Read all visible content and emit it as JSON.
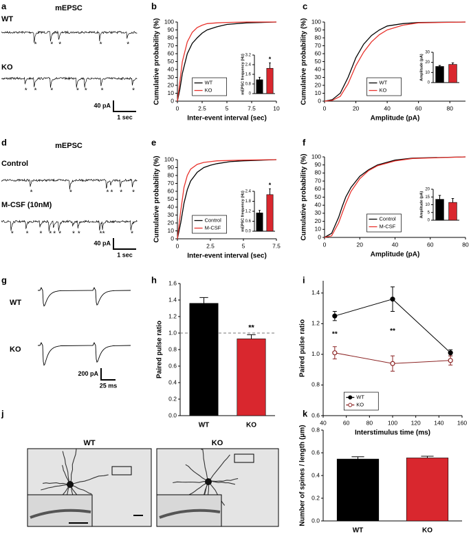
{
  "panel_labels": [
    "a",
    "b",
    "c",
    "d",
    "e",
    "f",
    "g",
    "h",
    "i",
    "j",
    "k"
  ],
  "traces": {
    "a": {
      "title": "mEPSC",
      "rows": [
        "WT",
        "KO"
      ],
      "marker": "*",
      "scale_y": "40 pA",
      "scale_x": "1 sec"
    },
    "d": {
      "title": "mEPSC",
      "rows": [
        "Control",
        "M-CSF (10nM)"
      ],
      "marker": "*",
      "scale_y": "40 pA",
      "scale_x": "1 sec"
    },
    "g": {
      "rows": [
        "WT",
        "KO"
      ],
      "scale_y": "200 pA",
      "scale_x": "25 ms"
    }
  },
  "images": {
    "titles": [
      "WT",
      "KO"
    ]
  },
  "chart_data": [
    {
      "type": "line",
      "x": [
        0,
        0.25,
        0.5,
        1,
        1.5,
        2,
        2.5,
        3,
        4,
        5,
        7,
        10
      ],
      "series": [
        {
          "name": "WT",
          "color": "#000000",
          "values": [
            0,
            15,
            35,
            60,
            73,
            80,
            86,
            90,
            94,
            97,
            99,
            100
          ]
        },
        {
          "name": "KO",
          "color": "#e8322c",
          "values": [
            0,
            25,
            50,
            75,
            87,
            93,
            96,
            98,
            99,
            99.5,
            100,
            100
          ]
        }
      ],
      "xlim": [
        0,
        10
      ],
      "xticks": [
        0,
        2.5,
        5,
        7.5,
        10
      ],
      "ylim": [
        0,
        100
      ],
      "yticks": [
        0,
        10,
        20,
        30,
        40,
        50,
        60,
        70,
        80,
        90,
        100
      ],
      "x_label": "Inter-event interval (sec)",
      "y_label": "Cumulative probability (%)",
      "legend": "lower left"
    },
    {
      "type": "bar",
      "categories": [
        null,
        null
      ],
      "values": [
        1.15,
        2.1
      ],
      "errors": [
        0.2,
        0.45
      ],
      "colors": [
        "#000000",
        "#d9272e"
      ],
      "ylim": [
        0,
        3.2
      ],
      "yticks": [
        0,
        0.8,
        1.6,
        2.4,
        3.2
      ],
      "y_label": "mEPSC frequency (Hz)",
      "annotation": "*"
    },
    {
      "type": "line",
      "x": [
        0,
        5,
        10,
        15,
        20,
        25,
        30,
        35,
        40,
        50,
        60,
        90
      ],
      "series": [
        {
          "name": "WT",
          "color": "#000000",
          "values": [
            0,
            2,
            10,
            30,
            55,
            72,
            83,
            90,
            95,
            98,
            99.5,
            100
          ]
        },
        {
          "name": "KO",
          "color": "#e8322c",
          "values": [
            0,
            1,
            6,
            22,
            45,
            62,
            75,
            84,
            90,
            96,
            99,
            100
          ]
        }
      ],
      "xlim": [
        0,
        90
      ],
      "xticks": [
        0,
        20,
        40,
        60,
        80
      ],
      "ylim": [
        0,
        100
      ],
      "yticks": [
        0,
        10,
        20,
        30,
        40,
        50,
        60,
        70,
        80,
        90,
        100
      ],
      "x_label": "Amplitude (pA)",
      "y_label": "Cumulative probability (%)",
      "legend": "lower center"
    },
    {
      "type": "bar",
      "categories": [
        null,
        null
      ],
      "values": [
        16,
        18
      ],
      "errors": [
        1,
        1.5
      ],
      "colors": [
        "#000000",
        "#d9272e"
      ],
      "ylim": [
        0,
        30
      ],
      "yticks": [
        0,
        10,
        20,
        30
      ],
      "y_label": "Amplitude (pA)"
    },
    {
      "type": "line",
      "x": [
        0,
        0.25,
        0.5,
        0.75,
        1,
        1.5,
        2,
        2.5,
        3,
        4,
        5,
        7.5
      ],
      "series": [
        {
          "name": "Control",
          "color": "#000000",
          "values": [
            0,
            20,
            45,
            62,
            73,
            84,
            90,
            93,
            95,
            97.5,
            98.5,
            100
          ]
        },
        {
          "name": "M-CSF",
          "color": "#e8322c",
          "values": [
            0,
            35,
            65,
            80,
            88,
            94,
            96.5,
            97.5,
            98.5,
            99,
            99.5,
            100
          ]
        }
      ],
      "xlim": [
        0,
        7.5
      ],
      "xticks": [
        0,
        2.5,
        5,
        7.5
      ],
      "ylim": [
        0,
        100
      ],
      "yticks": [
        0,
        10,
        20,
        30,
        40,
        50,
        60,
        70,
        80,
        90,
        100
      ],
      "x_label": "Inter-event interval (sec)",
      "y_label": "Cumulative probability (%)",
      "legend": "lower left"
    },
    {
      "type": "bar",
      "categories": [
        null,
        null
      ],
      "values": [
        1.1,
        2.2
      ],
      "errors": [
        0.15,
        0.35
      ],
      "colors": [
        "#000000",
        "#d9272e"
      ],
      "ylim": [
        0,
        2.4
      ],
      "yticks": [
        {
          "value": 0,
          "label": "0.0"
        },
        0.6,
        1.2,
        1.8,
        2.4
      ],
      "y_label": "mEPSC frequency (Hz)",
      "annotation": "*"
    },
    {
      "type": "line",
      "x": [
        0,
        4,
        8,
        10,
        12,
        15,
        20,
        25,
        30,
        40,
        50,
        80
      ],
      "series": [
        {
          "name": "Control",
          "color": "#000000",
          "values": [
            0,
            5,
            25,
            38,
            50,
            62,
            76,
            84,
            90,
            96,
            98.5,
            100
          ]
        },
        {
          "name": "M-CSF",
          "color": "#e8322c",
          "values": [
            0,
            2,
            18,
            30,
            42,
            57,
            73,
            83,
            89,
            95,
            98,
            100
          ]
        }
      ],
      "xlim": [
        0,
        80
      ],
      "xticks": [
        0,
        20,
        40,
        60,
        80
      ],
      "ylim": [
        0,
        100
      ],
      "yticks": [
        0,
        10,
        20,
        30,
        40,
        50,
        60,
        70,
        80,
        90,
        100
      ],
      "x_label": "Amplitude (pA)",
      "y_label": "Cumulative probability (%)",
      "legend": "lower center"
    },
    {
      "type": "bar",
      "categories": [
        null,
        null
      ],
      "values": [
        13.5,
        11.5
      ],
      "errors": [
        2.5,
        2.5
      ],
      "colors": [
        "#000000",
        "#d9272e"
      ],
      "ylim": [
        0,
        20
      ],
      "yticks": [
        0,
        5,
        10,
        15,
        20
      ],
      "y_label": "Amplitude (pA)"
    },
    {
      "type": "bar",
      "categories": [
        "WT",
        "KO"
      ],
      "values": [
        1.36,
        0.93
      ],
      "errors": [
        0.07,
        0.05
      ],
      "colors": [
        "#000000",
        "#d9272e"
      ],
      "ylim": [
        0,
        1.6
      ],
      "yticks": [
        {
          "value": 0,
          "label": "0.0"
        },
        0.2,
        0.4,
        0.6,
        0.8,
        {
          "value": 1,
          "label": "1.0"
        },
        1.2,
        1.4,
        1.6
      ],
      "y_label": "Paired pulse ratio",
      "reference_line": 1,
      "annotation": "**"
    },
    {
      "type": "line",
      "x": [
        50,
        100,
        150
      ],
      "series": [
        {
          "name": "WT",
          "color": "#000000",
          "marker": "filled",
          "values": [
            1.25,
            1.36,
            1.01
          ],
          "errors": [
            0.03,
            0.08,
            0.02
          ]
        },
        {
          "name": "KO",
          "color": "#8b2323",
          "marker": "open",
          "values": [
            1.01,
            0.94,
            0.96
          ],
          "errors": [
            0.04,
            0.05,
            0.03
          ]
        }
      ],
      "xlim": [
        40,
        160
      ],
      "xticks": [
        40,
        60,
        80,
        100,
        120,
        140,
        160
      ],
      "ylim": [
        0.6,
        1.48
      ],
      "yticks": [
        0.6,
        0.8,
        {
          "value": 1,
          "label": "1.0"
        },
        1.2,
        1.4
      ],
      "x_label": "Interstimulus time (ms)",
      "y_label": "Paired pulse ratio",
      "legend": "lower left",
      "annotations": [
        "**",
        "**"
      ]
    },
    {
      "type": "bar",
      "categories": [
        "WT",
        "KO"
      ],
      "values": [
        0.545,
        0.555
      ],
      "errors": [
        0.02,
        0.015
      ],
      "colors": [
        "#000000",
        "#d9272e"
      ],
      "ylim": [
        0,
        0.8
      ],
      "yticks": [
        {
          "value": 0,
          "label": "0.0"
        },
        0.2,
        0.4,
        0.6,
        0.8
      ],
      "y_label": "Number of spines / length (μm)"
    }
  ]
}
